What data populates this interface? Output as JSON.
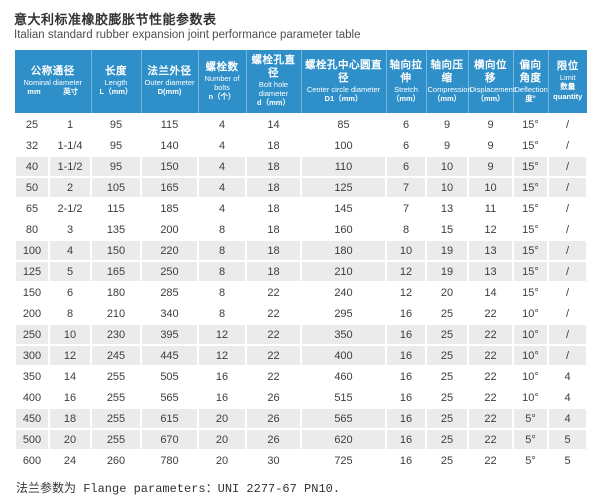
{
  "page": {
    "title_zh": "意大利标准橡胶膨胀节性能参数表",
    "title_en": "Italian standard rubber expansion joint performance parameter table",
    "footer": "法兰参数为 Flange parameters：UNI 2277-67 PN10."
  },
  "colors": {
    "header_bg": "#2e8fc9",
    "header_text": "#ffffff",
    "stripe_bg": "#ebebeb",
    "body_text": "#3d3d3d"
  },
  "table": {
    "headers": [
      {
        "zh": "公称通径",
        "en": "Nominal diameter",
        "subs": [
          "mm",
          "英寸"
        ],
        "colspan": 2
      },
      {
        "zh": "长度",
        "en": "Length",
        "sub": "L（mm）",
        "colspan": 1
      },
      {
        "zh": "法兰外径",
        "en": "Outer diameter",
        "sub": "D(mm)",
        "colspan": 1
      },
      {
        "zh": "螺栓数",
        "en": "Number of bolts",
        "sub": "n（个）",
        "colspan": 1
      },
      {
        "zh": "螺栓孔直径",
        "en": "Bolt hole diameter",
        "sub": "d（mm）",
        "colspan": 1
      },
      {
        "zh": "螺栓孔中心圆直径",
        "en": "Center circle diameter",
        "sub": "D1（mm）",
        "colspan": 1
      },
      {
        "zh": "轴向拉伸",
        "en": "Stretch",
        "sub": "（mm）",
        "colspan": 1
      },
      {
        "zh": "轴向压缩",
        "en": "Compression",
        "sub": "（mm）",
        "colspan": 1
      },
      {
        "zh": "横向位移",
        "en": "Displacement",
        "sub": "（mm）",
        "colspan": 1
      },
      {
        "zh": "偏向角度",
        "en": "Deflection",
        "sub": "度°",
        "colspan": 1
      },
      {
        "zh": "限位",
        "en": "Limit",
        "sub": "数量 quantity",
        "colspan": 1
      }
    ],
    "rows": [
      [
        "25",
        "1",
        "95",
        "115",
        "4",
        "14",
        "85",
        "6",
        "9",
        "9",
        "15°",
        "/"
      ],
      [
        "32",
        "1-1/4",
        "95",
        "140",
        "4",
        "18",
        "100",
        "6",
        "9",
        "9",
        "15°",
        "/"
      ],
      [
        "40",
        "1-1/2",
        "95",
        "150",
        "4",
        "18",
        "110",
        "6",
        "10",
        "9",
        "15°",
        "/"
      ],
      [
        "50",
        "2",
        "105",
        "165",
        "4",
        "18",
        "125",
        "7",
        "10",
        "10",
        "15°",
        "/"
      ],
      [
        "65",
        "2-1/2",
        "115",
        "185",
        "4",
        "18",
        "145",
        "7",
        "13",
        "11",
        "15°",
        "/"
      ],
      [
        "80",
        "3",
        "135",
        "200",
        "8",
        "18",
        "160",
        "8",
        "15",
        "12",
        "15°",
        "/"
      ],
      [
        "100",
        "4",
        "150",
        "220",
        "8",
        "18",
        "180",
        "10",
        "19",
        "13",
        "15°",
        "/"
      ],
      [
        "125",
        "5",
        "165",
        "250",
        "8",
        "18",
        "210",
        "12",
        "19",
        "13",
        "15°",
        "/"
      ],
      [
        "150",
        "6",
        "180",
        "285",
        "8",
        "22",
        "240",
        "12",
        "20",
        "14",
        "15°",
        "/"
      ],
      [
        "200",
        "8",
        "210",
        "340",
        "8",
        "22",
        "295",
        "16",
        "25",
        "22",
        "10°",
        "/"
      ],
      [
        "250",
        "10",
        "230",
        "395",
        "12",
        "22",
        "350",
        "16",
        "25",
        "22",
        "10°",
        "/"
      ],
      [
        "300",
        "12",
        "245",
        "445",
        "12",
        "22",
        "400",
        "16",
        "25",
        "22",
        "10°",
        "/"
      ],
      [
        "350",
        "14",
        "255",
        "505",
        "16",
        "22",
        "460",
        "16",
        "25",
        "22",
        "10°",
        "4"
      ],
      [
        "400",
        "16",
        "255",
        "565",
        "16",
        "26",
        "515",
        "16",
        "25",
        "22",
        "10°",
        "4"
      ],
      [
        "450",
        "18",
        "255",
        "615",
        "20",
        "26",
        "565",
        "16",
        "25",
        "22",
        "5°",
        "4"
      ],
      [
        "500",
        "20",
        "255",
        "670",
        "20",
        "26",
        "620",
        "16",
        "25",
        "22",
        "5°",
        "5"
      ],
      [
        "600",
        "24",
        "260",
        "780",
        "20",
        "30",
        "725",
        "16",
        "25",
        "22",
        "5°",
        "5"
      ]
    ]
  }
}
